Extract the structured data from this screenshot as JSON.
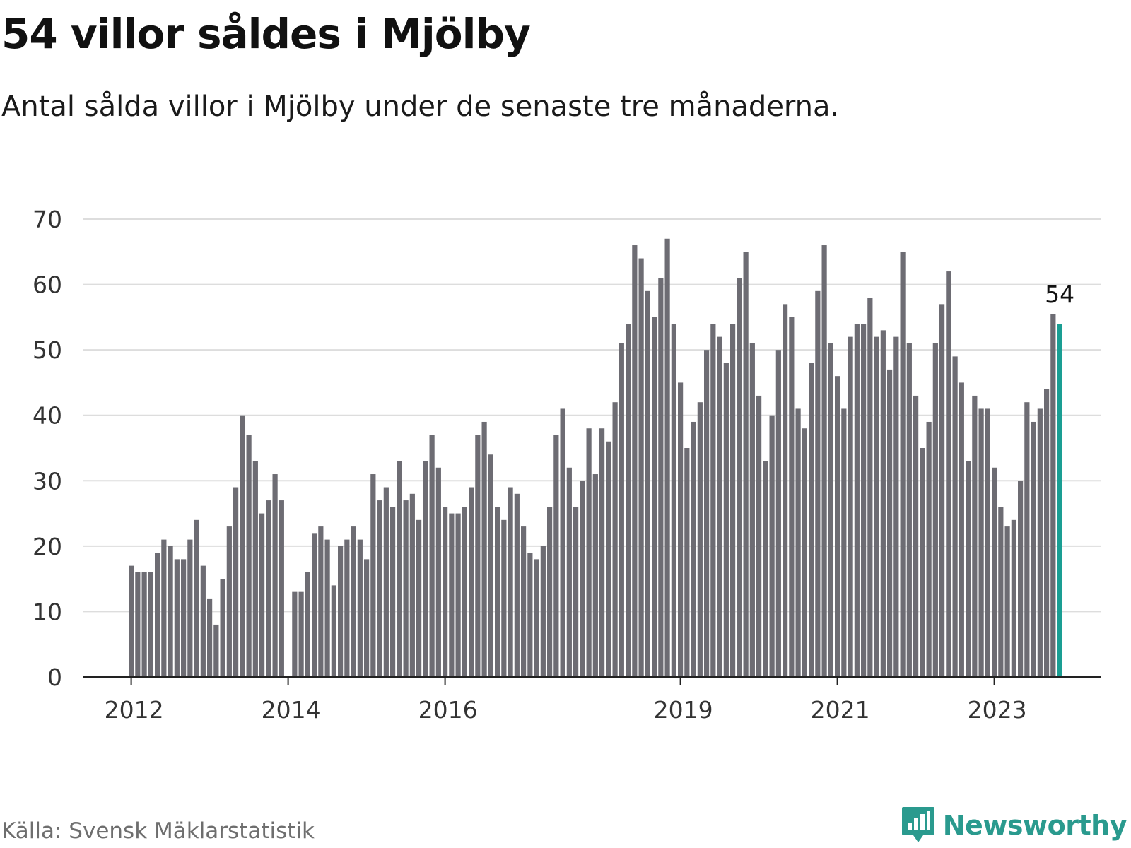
{
  "header": {
    "title": "54 villor såldes i Mjölby",
    "subtitle": "Antal sålda villor i Mjölby under de senaste tre månaderna."
  },
  "footer": {
    "source": "Källa: Svensk Mäklarstatistik",
    "brand_name": "Newsworthy",
    "brand_icon": "chart-bubble-icon"
  },
  "colors": {
    "bar": "#6d6c73",
    "highlight": "#1a9e93",
    "grid": "#dddddd",
    "axis": "#222222",
    "brand": "#2a9a8e"
  },
  "chart_data": {
    "type": "bar",
    "title": "54 villor såldes i Mjölby",
    "subtitle": "Antal sålda villor i Mjölby under de senaste tre månaderna.",
    "xlabel": "",
    "ylabel": "",
    "ylim": [
      0,
      70
    ],
    "yticks": [
      0,
      10,
      20,
      30,
      40,
      50,
      60,
      70
    ],
    "x_tick_labels": [
      "2012",
      "2014",
      "2016",
      "2019",
      "2021",
      "2023"
    ],
    "x_tick_month_index": [
      0,
      24,
      48,
      84,
      108,
      132
    ],
    "grid": true,
    "series": [
      {
        "values": [
          17,
          16,
          16,
          16,
          19,
          21,
          20,
          18,
          18,
          21,
          24,
          17,
          12,
          8,
          15,
          23,
          29,
          40,
          37,
          33,
          25,
          27,
          31,
          27,
          null,
          13,
          13,
          16,
          22,
          23,
          21,
          14,
          20,
          21,
          23,
          21,
          18,
          31,
          27,
          29,
          26,
          33,
          27,
          28,
          24,
          33,
          37,
          32,
          26,
          25,
          25,
          26,
          29,
          37,
          39,
          34,
          26,
          24,
          29,
          28,
          23,
          19,
          18,
          20,
          26,
          37,
          41,
          32,
          26,
          30,
          38,
          31,
          38,
          36,
          42,
          51,
          54,
          66,
          64,
          59,
          55,
          61,
          67,
          54,
          45,
          35,
          39,
          42,
          50,
          54,
          52,
          48,
          54,
          61,
          65,
          51,
          43,
          33,
          40,
          50,
          57,
          55,
          41,
          38,
          48,
          59,
          66,
          51,
          46,
          41,
          52,
          54,
          54,
          58,
          52,
          53,
          47,
          52,
          65,
          51,
          43,
          35,
          39,
          51,
          57,
          62,
          49,
          45,
          33,
          43,
          41,
          41,
          32,
          26,
          23,
          24,
          30,
          42,
          39,
          41,
          44,
          55.5,
          54
        ]
      }
    ],
    "highlight_index": 142,
    "highlight_label": "54"
  }
}
